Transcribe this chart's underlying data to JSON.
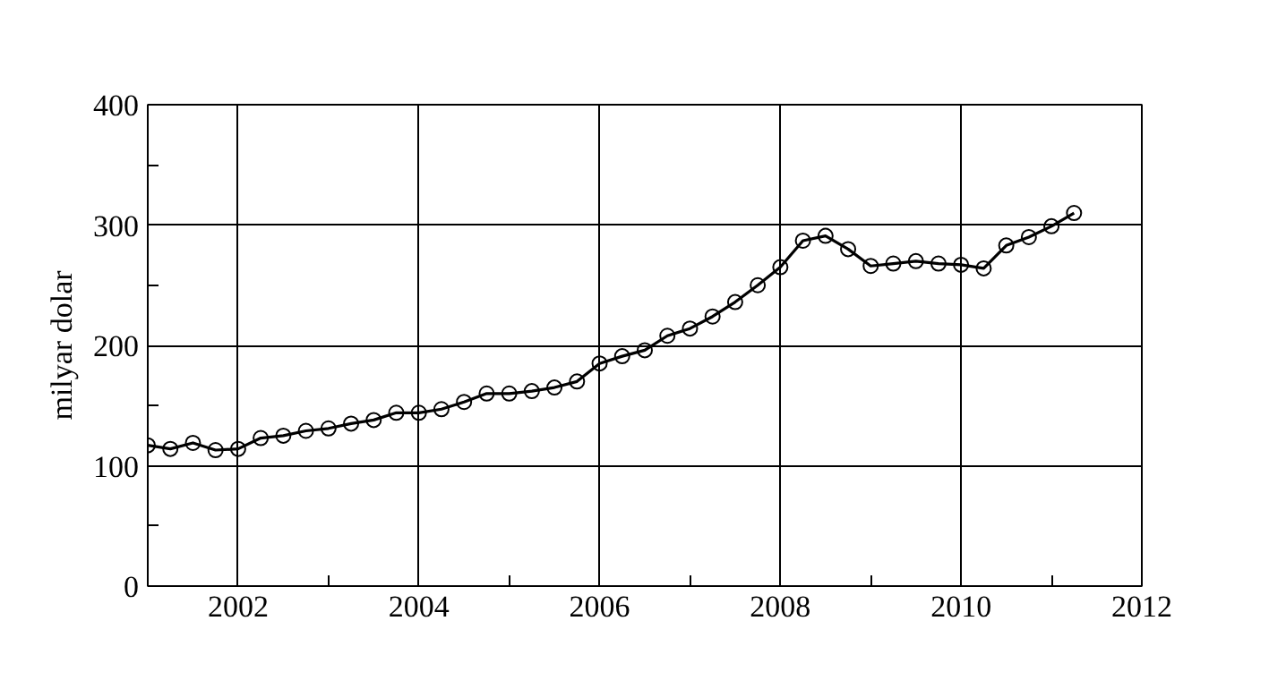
{
  "chart_data": {
    "type": "line",
    "ylabel": "milyar dolar",
    "x": [
      2001.0,
      2001.25,
      2001.5,
      2001.75,
      2002.0,
      2002.25,
      2002.5,
      2002.75,
      2003.0,
      2003.25,
      2003.5,
      2003.75,
      2004.0,
      2004.25,
      2004.5,
      2004.75,
      2005.0,
      2005.25,
      2005.5,
      2005.75,
      2006.0,
      2006.25,
      2006.5,
      2006.75,
      2007.0,
      2007.25,
      2007.5,
      2007.75,
      2008.0,
      2008.25,
      2008.5,
      2008.75,
      2009.0,
      2009.25,
      2009.5,
      2009.75,
      2010.0,
      2010.25,
      2010.5,
      2010.75,
      2011.0,
      2011.25
    ],
    "series": [
      {
        "color": "#000000",
        "values": [
          117,
          114,
          119,
          113,
          114,
          123,
          125,
          129,
          131,
          135,
          138,
          144,
          144,
          147,
          153,
          160,
          160,
          162,
          165,
          170,
          185,
          191,
          196,
          208,
          214,
          224,
          236,
          250,
          265,
          287,
          291,
          280,
          266,
          268,
          270,
          268,
          267,
          264,
          283,
          290,
          299,
          310
        ]
      }
    ],
    "xlim": [
      2001,
      2012
    ],
    "xticks": [
      2002,
      {
        "value": 2003,
        "label": null
      },
      2004,
      {
        "value": 2005,
        "label": null
      },
      2006,
      {
        "value": 2007,
        "label": null
      },
      2008,
      {
        "value": 2009,
        "label": null
      },
      2010,
      {
        "value": 2011,
        "label": null
      },
      2012
    ],
    "ylim": [
      0,
      400
    ],
    "yticks": [
      0,
      {
        "value": 50,
        "label": null
      },
      100,
      {
        "value": 150,
        "label": null
      },
      200,
      {
        "value": 250,
        "label": null
      },
      300,
      {
        "value": 350,
        "label": null
      },
      400
    ],
    "grid": true,
    "marker": "circle",
    "line_style": "solid"
  }
}
